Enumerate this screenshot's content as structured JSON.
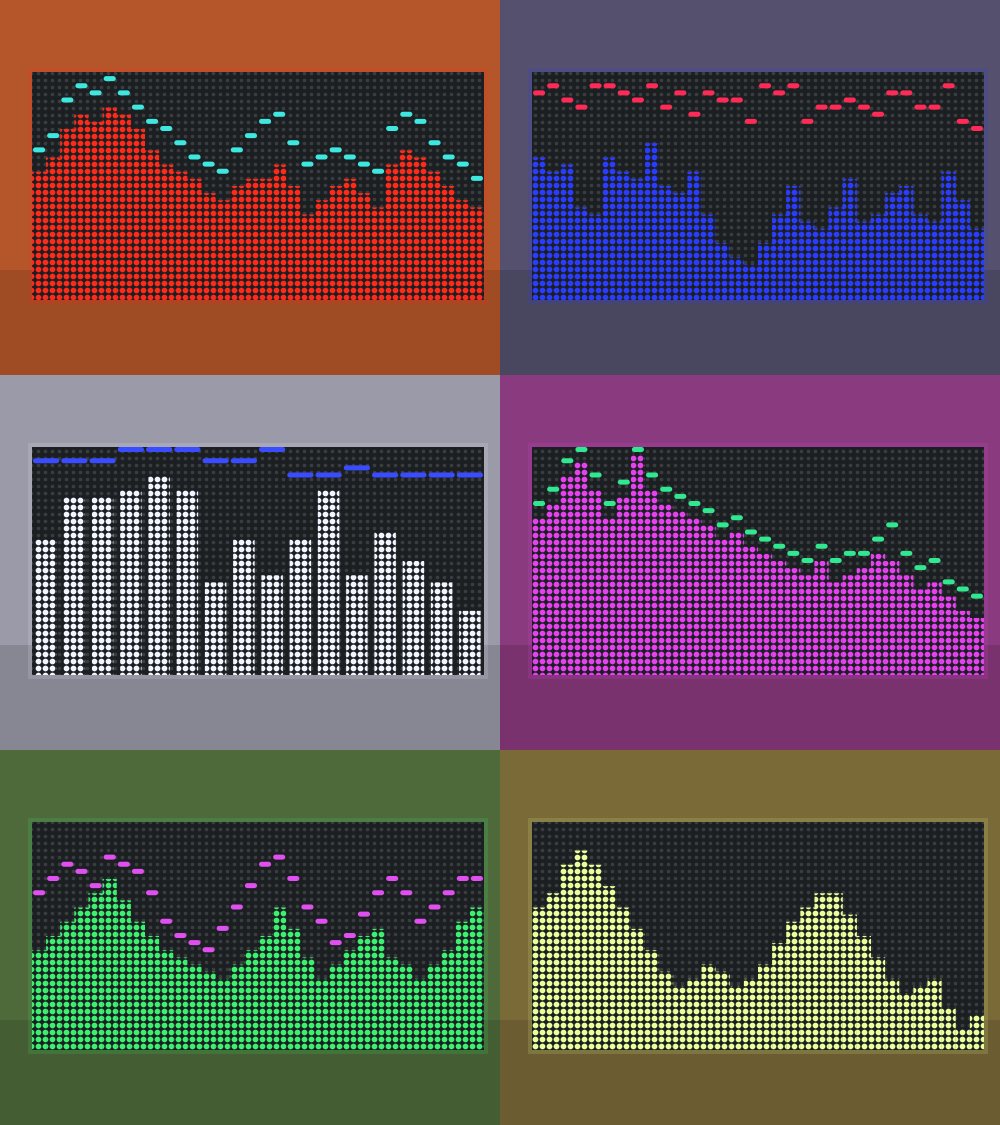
{
  "panels": [
    {
      "background": "#b5562a",
      "bar_color": "#ff2a1a",
      "peak_color": "#3ee8e0",
      "rows": 32,
      "levels": [
        18,
        20,
        24,
        26,
        25,
        27,
        26,
        24,
        21,
        19,
        18,
        17,
        15,
        14,
        16,
        17,
        17,
        19,
        16,
        12,
        14,
        16,
        17,
        15,
        13,
        19,
        21,
        20,
        18,
        16,
        14,
        13
      ],
      "peaks": [
        21,
        23,
        28,
        30,
        29,
        31,
        29,
        27,
        25,
        24,
        22,
        20,
        19,
        18,
        21,
        23,
        25,
        26,
        22,
        19,
        20,
        21,
        20,
        19,
        18,
        24,
        26,
        25,
        22,
        20,
        19,
        17
      ]
    },
    {
      "background": "#54506e",
      "bar_color": "#2a3cff",
      "peak_color": "#ff2a55",
      "rows": 32,
      "levels": [
        20,
        18,
        19,
        13,
        12,
        20,
        18,
        17,
        22,
        16,
        15,
        18,
        12,
        8,
        6,
        5,
        8,
        12,
        16,
        11,
        10,
        13,
        17,
        11,
        12,
        15,
        16,
        12,
        11,
        18,
        14,
        10
      ],
      "peaks": [
        29,
        30,
        28,
        27,
        30,
        30,
        29,
        28,
        30,
        27,
        29,
        26,
        29,
        28,
        28,
        25,
        30,
        29,
        30,
        25,
        27,
        27,
        28,
        27,
        26,
        29,
        29,
        27,
        27,
        30,
        25,
        24
      ]
    },
    {
      "background": "#9a9aa8",
      "bar_color": "#f2f4ff",
      "peak_color": "#3a4cff",
      "rows": 32,
      "levels": [
        19,
        25,
        25,
        26,
        28,
        26,
        13,
        19,
        14,
        19,
        26,
        14,
        20,
        16,
        13,
        9
      ],
      "peaks": [
        30,
        30,
        30,
        32,
        32,
        32,
        30,
        30,
        32,
        28,
        28,
        29,
        28,
        28,
        28,
        28
      ]
    },
    {
      "background": "#8a3a7e",
      "bar_color": "#e640f0",
      "peak_color": "#30e890",
      "rows": 32,
      "levels": [
        22,
        24,
        28,
        30,
        26,
        22,
        25,
        31,
        26,
        24,
        23,
        22,
        21,
        19,
        20,
        18,
        17,
        16,
        15,
        14,
        16,
        13,
        14,
        15,
        17,
        16,
        14,
        12,
        13,
        11,
        9,
        8
      ],
      "peaks": [
        24,
        26,
        30,
        32,
        28,
        24,
        27,
        32,
        28,
        26,
        25,
        24,
        23,
        21,
        22,
        20,
        19,
        18,
        17,
        16,
        18,
        16,
        17,
        17,
        19,
        21,
        17,
        15,
        16,
        13,
        12,
        11
      ]
    },
    {
      "background": "#4e6a3a",
      "bar_color": "#3cf070",
      "peak_color": "#e050f0",
      "rows": 32,
      "levels": [
        14,
        16,
        18,
        20,
        22,
        24,
        21,
        18,
        16,
        14,
        13,
        12,
        11,
        10,
        12,
        14,
        16,
        20,
        17,
        13,
        10,
        12,
        14,
        16,
        17,
        13,
        12,
        10,
        12,
        14,
        18,
        20
      ],
      "peaks": [
        22,
        24,
        26,
        25,
        23,
        27,
        26,
        25,
        22,
        18,
        16,
        15,
        14,
        17,
        20,
        23,
        26,
        27,
        24,
        20,
        18,
        15,
        16,
        19,
        22,
        24,
        22,
        18,
        20,
        22,
        24,
        24
      ]
    },
    {
      "background": "#7a6a38",
      "bar_color": "#e8ff9a",
      "peak_color": "#e8ff9a",
      "rows": 32,
      "levels": [
        20,
        22,
        26,
        28,
        26,
        23,
        20,
        17,
        14,
        11,
        9,
        10,
        12,
        11,
        9,
        10,
        12,
        15,
        18,
        20,
        22,
        22,
        19,
        16,
        13,
        10,
        8,
        9,
        10,
        6,
        3,
        5
      ]
    }
  ]
}
